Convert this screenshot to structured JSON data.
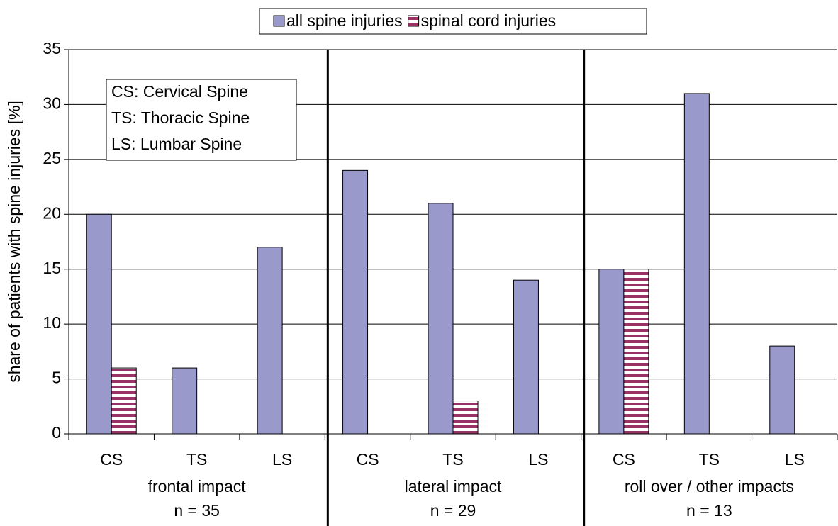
{
  "chart_data": {
    "type": "bar",
    "y_label": "share of patients with spine injuries [%]",
    "categories": [
      "CS",
      "TS",
      "LS",
      "CS",
      "TS",
      "LS",
      "CS",
      "TS",
      "LS"
    ],
    "groups": [
      {
        "label": "frontal impact",
        "n": "n = 35"
      },
      {
        "label": "lateral impact",
        "n": "n = 29"
      },
      {
        "label": "roll over / other impacts",
        "n": "n = 13"
      }
    ],
    "series": [
      {
        "name": "all spine injuries",
        "color": "#9999cc",
        "values": [
          20,
          6,
          17,
          24,
          21,
          14,
          15,
          31,
          8
        ]
      },
      {
        "name": "spinal cord injuries",
        "color": "#993366",
        "hatch": "horizontal",
        "values": [
          6,
          null,
          null,
          null,
          3,
          null,
          15,
          null,
          null
        ]
      }
    ],
    "annotation": [
      "CS: Cervical Spine",
      "TS: Thoracic Spine",
      "LS: Lumbar Spine"
    ],
    "ylim": [
      0,
      35
    ],
    "yticks": [
      0,
      5,
      10,
      15,
      20,
      25,
      30,
      35
    ],
    "grid": true,
    "legend": "top"
  }
}
